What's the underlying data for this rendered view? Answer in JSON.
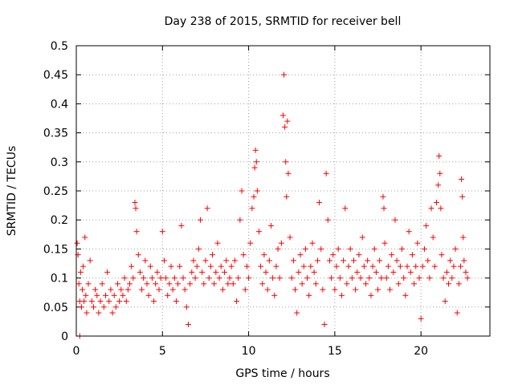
{
  "chart_data": {
    "type": "scatter",
    "title": "Day 238 of 2015, SRMTID for receiver bell",
    "xlabel": "GPS time / hours",
    "ylabel": "SRMTID / TECUs",
    "xlim": [
      0,
      24
    ],
    "ylim": [
      0,
      0.5
    ],
    "xticks": [
      0,
      5,
      10,
      15,
      20
    ],
    "xtick_labels": [
      "0",
      "5",
      "10",
      "15",
      "20"
    ],
    "yticks": [
      0,
      0.05,
      0.1,
      0.15,
      0.2,
      0.25,
      0.3,
      0.35,
      0.4,
      0.45,
      0.5
    ],
    "ytick_labels": [
      "0",
      "0.05",
      "0.1",
      "0.15",
      "0.2",
      "0.25",
      "0.3",
      "0.35",
      "0.4",
      "0.45",
      "0.5"
    ],
    "grid": true,
    "marker": "+",
    "color": "#ff0000",
    "series": [
      {
        "name": "SRMTID",
        "points": [
          [
            0.05,
            0.16
          ],
          [
            0.1,
            0.14
          ],
          [
            0.15,
            0.09
          ],
          [
            0.2,
            0.06
          ],
          [
            0.2,
            0.0
          ],
          [
            0.25,
            0.11
          ],
          [
            0.3,
            0.05
          ],
          [
            0.35,
            0.08
          ],
          [
            0.4,
            0.12
          ],
          [
            0.45,
            0.06
          ],
          [
            0.5,
            0.17
          ],
          [
            0.55,
            0.07
          ],
          [
            0.6,
            0.04
          ],
          [
            0.7,
            0.09
          ],
          [
            0.8,
            0.13
          ],
          [
            0.9,
            0.06
          ],
          [
            1.0,
            0.05
          ],
          [
            1.1,
            0.08
          ],
          [
            1.2,
            0.07
          ],
          [
            1.3,
            0.04
          ],
          [
            1.4,
            0.06
          ],
          [
            1.5,
            0.09
          ],
          [
            1.6,
            0.05
          ],
          [
            1.7,
            0.07
          ],
          [
            1.8,
            0.11
          ],
          [
            1.9,
            0.06
          ],
          [
            2.0,
            0.08
          ],
          [
            2.1,
            0.04
          ],
          [
            2.2,
            0.07
          ],
          [
            2.3,
            0.05
          ],
          [
            2.4,
            0.09
          ],
          [
            2.5,
            0.06
          ],
          [
            2.6,
            0.08
          ],
          [
            2.7,
            0.07
          ],
          [
            2.8,
            0.1
          ],
          [
            2.9,
            0.06
          ],
          [
            3.0,
            0.08
          ],
          [
            3.1,
            0.09
          ],
          [
            3.2,
            0.12
          ],
          [
            3.3,
            0.1
          ],
          [
            3.4,
            0.23
          ],
          [
            3.45,
            0.22
          ],
          [
            3.5,
            0.18
          ],
          [
            3.6,
            0.14
          ],
          [
            3.7,
            0.11
          ],
          [
            3.8,
            0.08
          ],
          [
            3.9,
            0.1
          ],
          [
            4.0,
            0.13
          ],
          [
            4.1,
            0.09
          ],
          [
            4.2,
            0.07
          ],
          [
            4.3,
            0.12
          ],
          [
            4.4,
            0.1
          ],
          [
            4.5,
            0.06
          ],
          [
            4.6,
            0.09
          ],
          [
            4.7,
            0.11
          ],
          [
            4.8,
            0.08
          ],
          [
            4.9,
            0.1
          ],
          [
            5.0,
            0.18
          ],
          [
            5.1,
            0.13
          ],
          [
            5.2,
            0.1
          ],
          [
            5.3,
            0.07
          ],
          [
            5.4,
            0.09
          ],
          [
            5.5,
            0.12
          ],
          [
            5.6,
            0.08
          ],
          [
            5.7,
            0.1
          ],
          [
            5.8,
            0.06
          ],
          [
            5.9,
            0.09
          ],
          [
            6.0,
            0.12
          ],
          [
            6.1,
            0.19
          ],
          [
            6.2,
            0.1
          ],
          [
            6.3,
            0.08
          ],
          [
            6.4,
            0.05
          ],
          [
            6.5,
            0.02
          ],
          [
            6.6,
            0.09
          ],
          [
            6.7,
            0.11
          ],
          [
            6.8,
            0.13
          ],
          [
            6.9,
            0.1
          ],
          [
            7.0,
            0.12
          ],
          [
            7.1,
            0.15
          ],
          [
            7.2,
            0.2
          ],
          [
            7.3,
            0.11
          ],
          [
            7.4,
            0.09
          ],
          [
            7.5,
            0.13
          ],
          [
            7.6,
            0.22
          ],
          [
            7.7,
            0.1
          ],
          [
            7.8,
            0.12
          ],
          [
            7.9,
            0.14
          ],
          [
            8.0,
            0.09
          ],
          [
            8.1,
            0.11
          ],
          [
            8.2,
            0.16
          ],
          [
            8.3,
            0.1
          ],
          [
            8.4,
            0.12
          ],
          [
            8.5,
            0.08
          ],
          [
            8.6,
            0.11
          ],
          [
            8.7,
            0.13
          ],
          [
            8.8,
            0.09
          ],
          [
            8.9,
            0.1
          ],
          [
            9.0,
            0.12
          ],
          [
            9.1,
            0.09
          ],
          [
            9.2,
            0.13
          ],
          [
            9.3,
            0.06
          ],
          [
            9.4,
            0.1
          ],
          [
            9.5,
            0.2
          ],
          [
            9.6,
            0.25
          ],
          [
            9.7,
            0.14
          ],
          [
            9.8,
            0.08
          ],
          [
            9.9,
            0.12
          ],
          [
            10.0,
            0.1
          ],
          [
            10.1,
            0.16
          ],
          [
            10.2,
            0.22
          ],
          [
            10.3,
            0.24
          ],
          [
            10.35,
            0.29
          ],
          [
            10.4,
            0.32
          ],
          [
            10.45,
            0.3
          ],
          [
            10.5,
            0.25
          ],
          [
            10.6,
            0.18
          ],
          [
            10.7,
            0.12
          ],
          [
            10.8,
            0.09
          ],
          [
            10.9,
            0.14
          ],
          [
            11.0,
            0.11
          ],
          [
            11.1,
            0.08
          ],
          [
            11.2,
            0.13
          ],
          [
            11.3,
            0.19
          ],
          [
            11.4,
            0.1
          ],
          [
            11.5,
            0.07
          ],
          [
            11.6,
            0.12
          ],
          [
            11.7,
            0.15
          ],
          [
            11.8,
            0.1
          ],
          [
            11.9,
            0.16
          ],
          [
            12.0,
            0.38
          ],
          [
            12.05,
            0.45
          ],
          [
            12.1,
            0.36
          ],
          [
            12.15,
            0.3
          ],
          [
            12.2,
            0.24
          ],
          [
            12.25,
            0.37
          ],
          [
            12.3,
            0.28
          ],
          [
            12.4,
            0.17
          ],
          [
            12.5,
            0.1
          ],
          [
            12.6,
            0.13
          ],
          [
            12.7,
            0.08
          ],
          [
            12.8,
            0.04
          ],
          [
            12.9,
            0.11
          ],
          [
            13.0,
            0.14
          ],
          [
            13.1,
            0.09
          ],
          [
            13.2,
            0.12
          ],
          [
            13.3,
            0.15
          ],
          [
            13.4,
            0.1
          ],
          [
            13.5,
            0.07
          ],
          [
            13.6,
            0.12
          ],
          [
            13.7,
            0.16
          ],
          [
            13.8,
            0.11
          ],
          [
            13.9,
            0.09
          ],
          [
            14.0,
            0.13
          ],
          [
            14.1,
            0.23
          ],
          [
            14.2,
            0.15
          ],
          [
            14.3,
            0.08
          ],
          [
            14.4,
            0.02
          ],
          [
            14.5,
            0.28
          ],
          [
            14.6,
            0.2
          ],
          [
            14.7,
            0.13
          ],
          [
            14.8,
            0.1
          ],
          [
            14.9,
            0.14
          ],
          [
            15.0,
            0.08
          ],
          [
            15.1,
            0.12
          ],
          [
            15.2,
            0.15
          ],
          [
            15.3,
            0.1
          ],
          [
            15.4,
            0.07
          ],
          [
            15.5,
            0.13
          ],
          [
            15.6,
            0.22
          ],
          [
            15.7,
            0.09
          ],
          [
            15.8,
            0.12
          ],
          [
            15.9,
            0.15
          ],
          [
            16.0,
            0.1
          ],
          [
            16.1,
            0.13
          ],
          [
            16.2,
            0.08
          ],
          [
            16.3,
            0.11
          ],
          [
            16.4,
            0.14
          ],
          [
            16.5,
            0.1
          ],
          [
            16.6,
            0.17
          ],
          [
            16.7,
            0.12
          ],
          [
            16.8,
            0.09
          ],
          [
            16.9,
            0.13
          ],
          [
            17.0,
            0.1
          ],
          [
            17.1,
            0.07
          ],
          [
            17.2,
            0.12
          ],
          [
            17.3,
            0.15
          ],
          [
            17.4,
            0.11
          ],
          [
            17.5,
            0.08
          ],
          [
            17.6,
            0.13
          ],
          [
            17.7,
            0.1
          ],
          [
            17.8,
            0.24
          ],
          [
            17.85,
            0.22
          ],
          [
            17.9,
            0.16
          ],
          [
            18.0,
            0.1
          ],
          [
            18.1,
            0.12
          ],
          [
            18.2,
            0.08
          ],
          [
            18.3,
            0.14
          ],
          [
            18.4,
            0.11
          ],
          [
            18.5,
            0.2
          ],
          [
            18.6,
            0.13
          ],
          [
            18.7,
            0.09
          ],
          [
            18.8,
            0.12
          ],
          [
            18.9,
            0.15
          ],
          [
            19.0,
            0.1
          ],
          [
            19.1,
            0.07
          ],
          [
            19.2,
            0.12
          ],
          [
            19.3,
            0.18
          ],
          [
            19.4,
            0.11
          ],
          [
            19.5,
            0.14
          ],
          [
            19.6,
            0.09
          ],
          [
            19.7,
            0.12
          ],
          [
            19.8,
            0.16
          ],
          [
            19.9,
            0.1
          ],
          [
            20.0,
            0.03
          ],
          [
            20.1,
            0.12
          ],
          [
            20.2,
            0.15
          ],
          [
            20.3,
            0.19
          ],
          [
            20.4,
            0.13
          ],
          [
            20.5,
            0.1
          ],
          [
            20.6,
            0.22
          ],
          [
            20.7,
            0.17
          ],
          [
            20.8,
            0.12
          ],
          [
            20.9,
            0.23
          ],
          [
            21.0,
            0.26
          ],
          [
            21.05,
            0.31
          ],
          [
            21.1,
            0.28
          ],
          [
            21.15,
            0.22
          ],
          [
            21.2,
            0.14
          ],
          [
            21.3,
            0.1
          ],
          [
            21.4,
            0.06
          ],
          [
            21.5,
            0.11
          ],
          [
            21.6,
            0.09
          ],
          [
            21.7,
            0.13
          ],
          [
            21.8,
            0.1
          ],
          [
            21.9,
            0.12
          ],
          [
            22.0,
            0.15
          ],
          [
            22.1,
            0.04
          ],
          [
            22.2,
            0.09
          ],
          [
            22.3,
            0.12
          ],
          [
            22.35,
            0.27
          ],
          [
            22.4,
            0.24
          ],
          [
            22.45,
            0.17
          ],
          [
            22.5,
            0.13
          ],
          [
            22.6,
            0.11
          ],
          [
            22.7,
            0.1
          ]
        ]
      }
    ]
  }
}
